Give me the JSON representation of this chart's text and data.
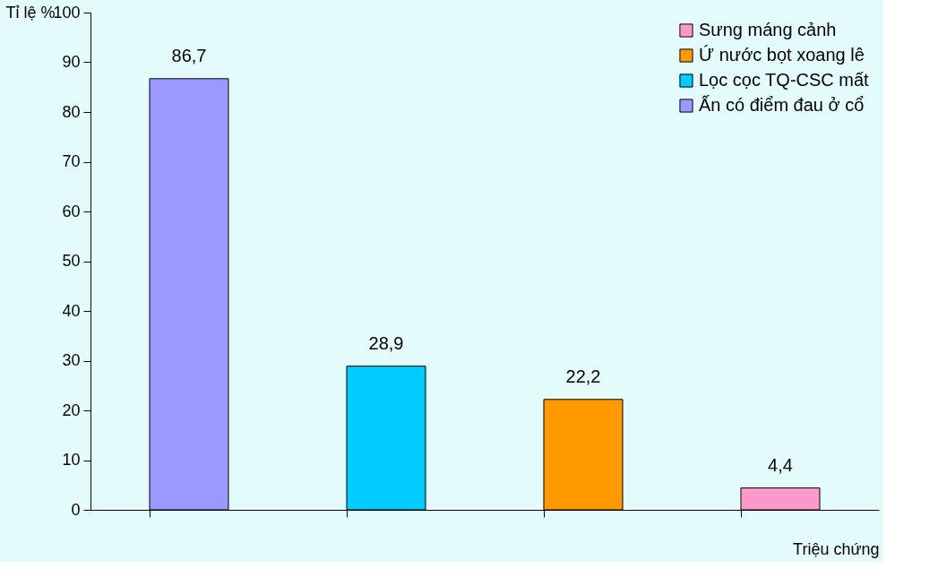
{
  "chart_data": {
    "type": "bar",
    "xlabel": "Triệu chứng",
    "ylabel": "Tỉ lệ %",
    "categories": [
      null,
      null,
      null,
      null
    ],
    "series": [
      {
        "name": "Sưng máng cảnh",
        "color": "#ff99cc",
        "values": [
          null,
          null,
          null,
          4.4
        ],
        "value_labels": [
          null,
          null,
          null,
          "4,4"
        ]
      },
      {
        "name": "Ứ nước bọt xoang lê",
        "color": "#ff9900",
        "values": [
          null,
          null,
          22.2,
          null
        ],
        "value_labels": [
          null,
          null,
          "22,2",
          null
        ]
      },
      {
        "name": "Lọc cọc TQ-CSC mất",
        "color": "#00ccff",
        "values": [
          null,
          28.9,
          null,
          null
        ],
        "value_labels": [
          null,
          "28,9",
          null,
          null
        ]
      },
      {
        "name": "Ấn có điểm đau ở cổ",
        "color": "#9999ff",
        "values": [
          86.7,
          null,
          null,
          null
        ],
        "value_labels": [
          "86,7",
          null,
          null,
          null
        ]
      }
    ],
    "ylim": [
      0,
      100
    ],
    "yticks": [
      0,
      10,
      20,
      30,
      40,
      50,
      60,
      70,
      80,
      90,
      100
    ],
    "grid": false,
    "legend": "top right",
    "tick_labels": "y"
  }
}
